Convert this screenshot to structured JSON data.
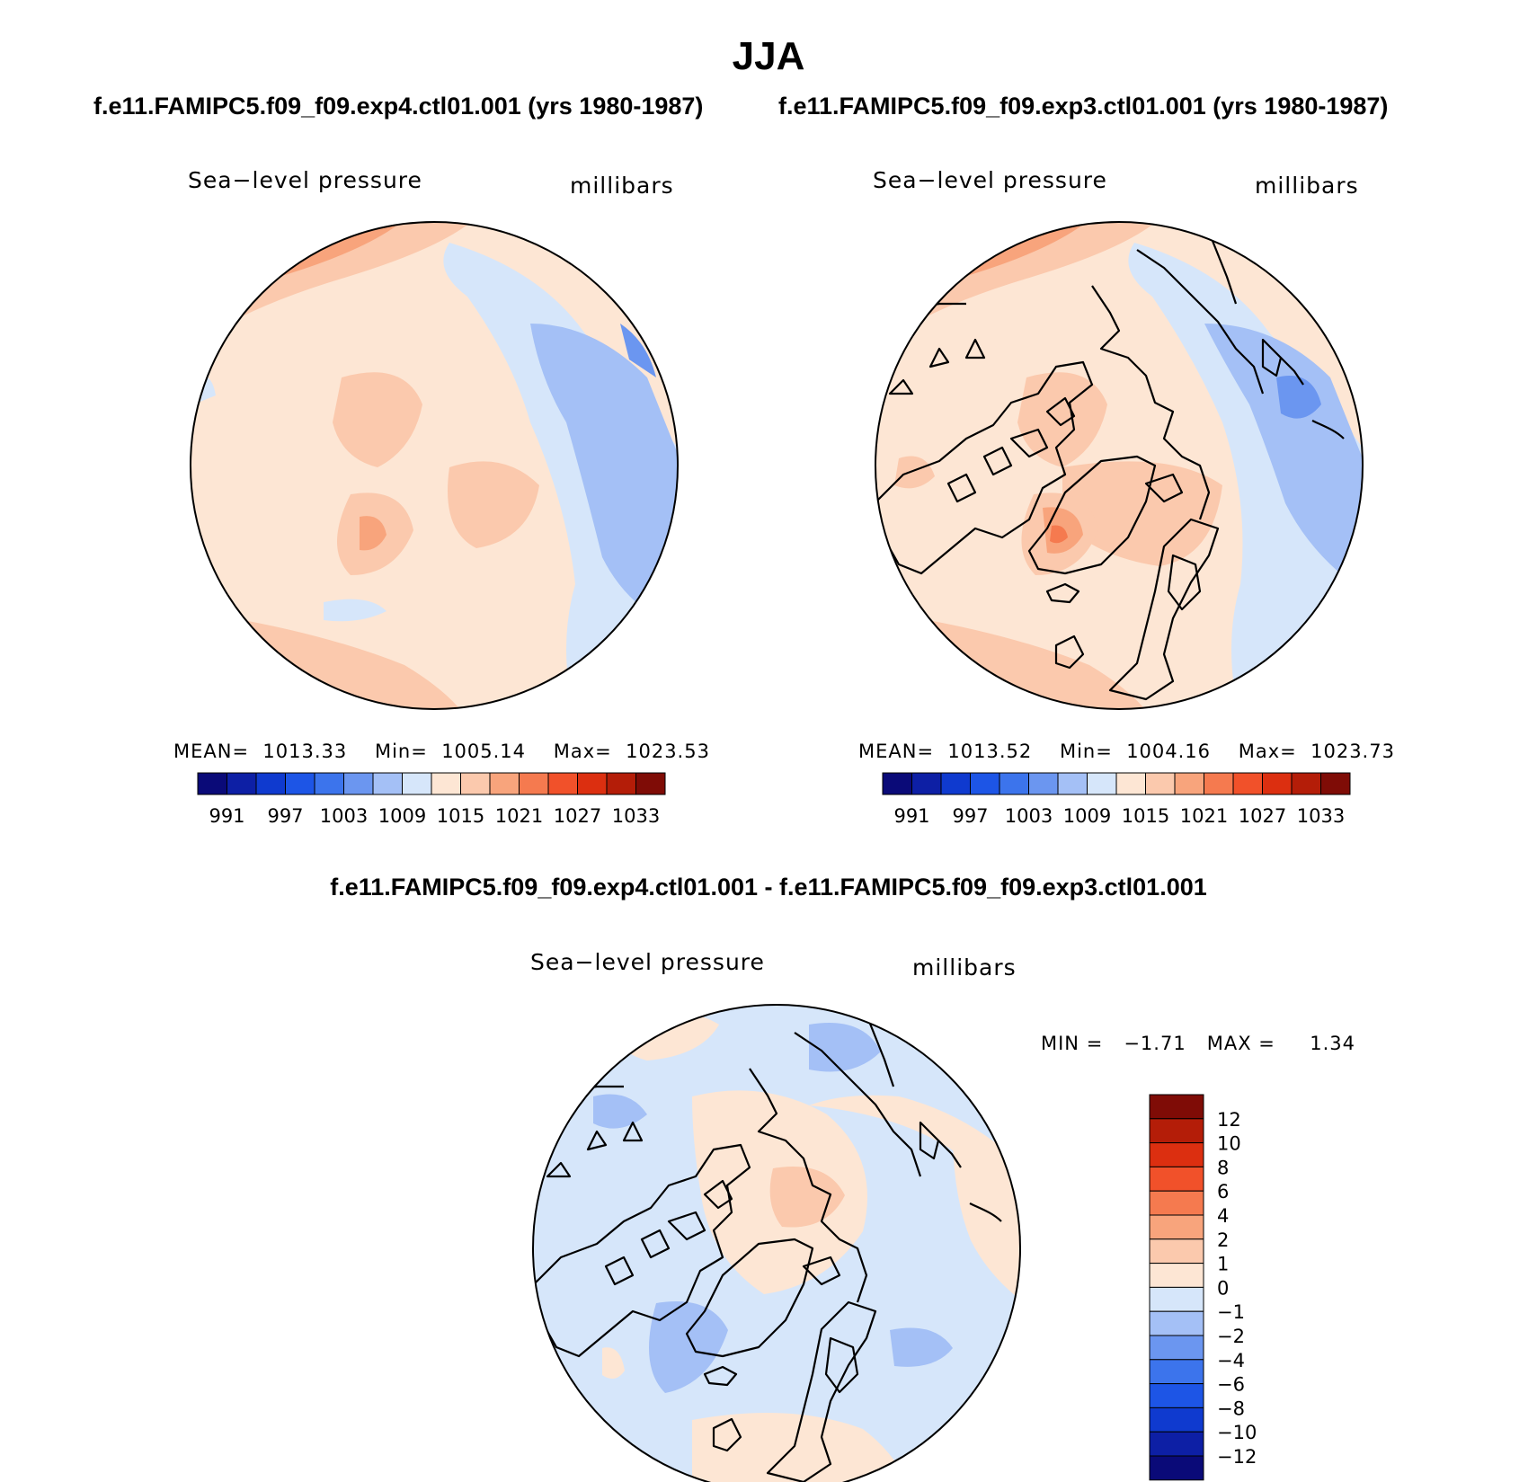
{
  "header": {
    "season": "JJA",
    "case_left": "f.e11.FAMIPC5.f09_f09.exp4.ctl01.001 (yrs 1980-1987)",
    "case_right": "f.e11.FAMIPC5.f09_f09.exp3.ctl01.001 (yrs 1980-1987)",
    "diff_title": "f.e11.FAMIPC5.f09_f09.exp4.ctl01.001 - f.e11.FAMIPC5.f09_f09.exp3.ctl01.001"
  },
  "panels": [
    {
      "id": "left",
      "variable": "Sea−level pressure",
      "units": "millibars",
      "stats": {
        "mean_label": "MEAN=",
        "mean": "1013.33",
        "min_label": "Min=",
        "min": "1005.14",
        "max_label": "Max=",
        "max": "1023.53"
      }
    },
    {
      "id": "right",
      "variable": "Sea−level pressure",
      "units": "millibars",
      "stats": {
        "mean_label": "MEAN=",
        "mean": "1013.52",
        "min_label": "Min=",
        "min": "1004.16",
        "max_label": "Max=",
        "max": "1023.73"
      }
    },
    {
      "id": "diff",
      "variable": "Sea−level pressure",
      "units": "millibars",
      "stats": {
        "min_label": "MIN =",
        "min": "−1.71",
        "max_label": "MAX =",
        "max": "1.34"
      }
    }
  ],
  "colorbar_abs": {
    "colors": [
      "#0a0a78",
      "#0d1fa5",
      "#0f3acf",
      "#1d55e6",
      "#3c74ec",
      "#6b96f0",
      "#a4c0f6",
      "#d6e6fa",
      "#fde6d4",
      "#fbc9ad",
      "#f8a47c",
      "#f57a4f",
      "#f1512a",
      "#dc2f10",
      "#b41d08",
      "#7f0c06"
    ],
    "ticks": [
      "991",
      "997",
      "1003",
      "1009",
      "1015",
      "1021",
      "1027",
      "1033"
    ]
  },
  "colorbar_diff": {
    "colors": [
      "#7f0c06",
      "#b41d08",
      "#dc2f10",
      "#f1512a",
      "#f57a4f",
      "#f8a47c",
      "#fbc9ad",
      "#fde6d4",
      "#d6e6fa",
      "#a4c0f6",
      "#6b96f0",
      "#3c74ec",
      "#1d55e6",
      "#0f3acf",
      "#0d1fa5",
      "#0a0a78"
    ],
    "ticks": [
      "12",
      "10",
      "8",
      "6",
      "4",
      "2",
      "1",
      "0",
      "−1",
      "−2",
      "−4",
      "−6",
      "−8",
      "−10",
      "−12"
    ]
  },
  "map_colors": {
    "pos1": "#fde6d4",
    "pos2": "#fbc9ad",
    "pos3": "#f8a47c",
    "pos4": "#f57a4f",
    "neg1": "#d6e6fa",
    "neg2": "#a4c0f6",
    "neg3": "#6b96f0"
  }
}
